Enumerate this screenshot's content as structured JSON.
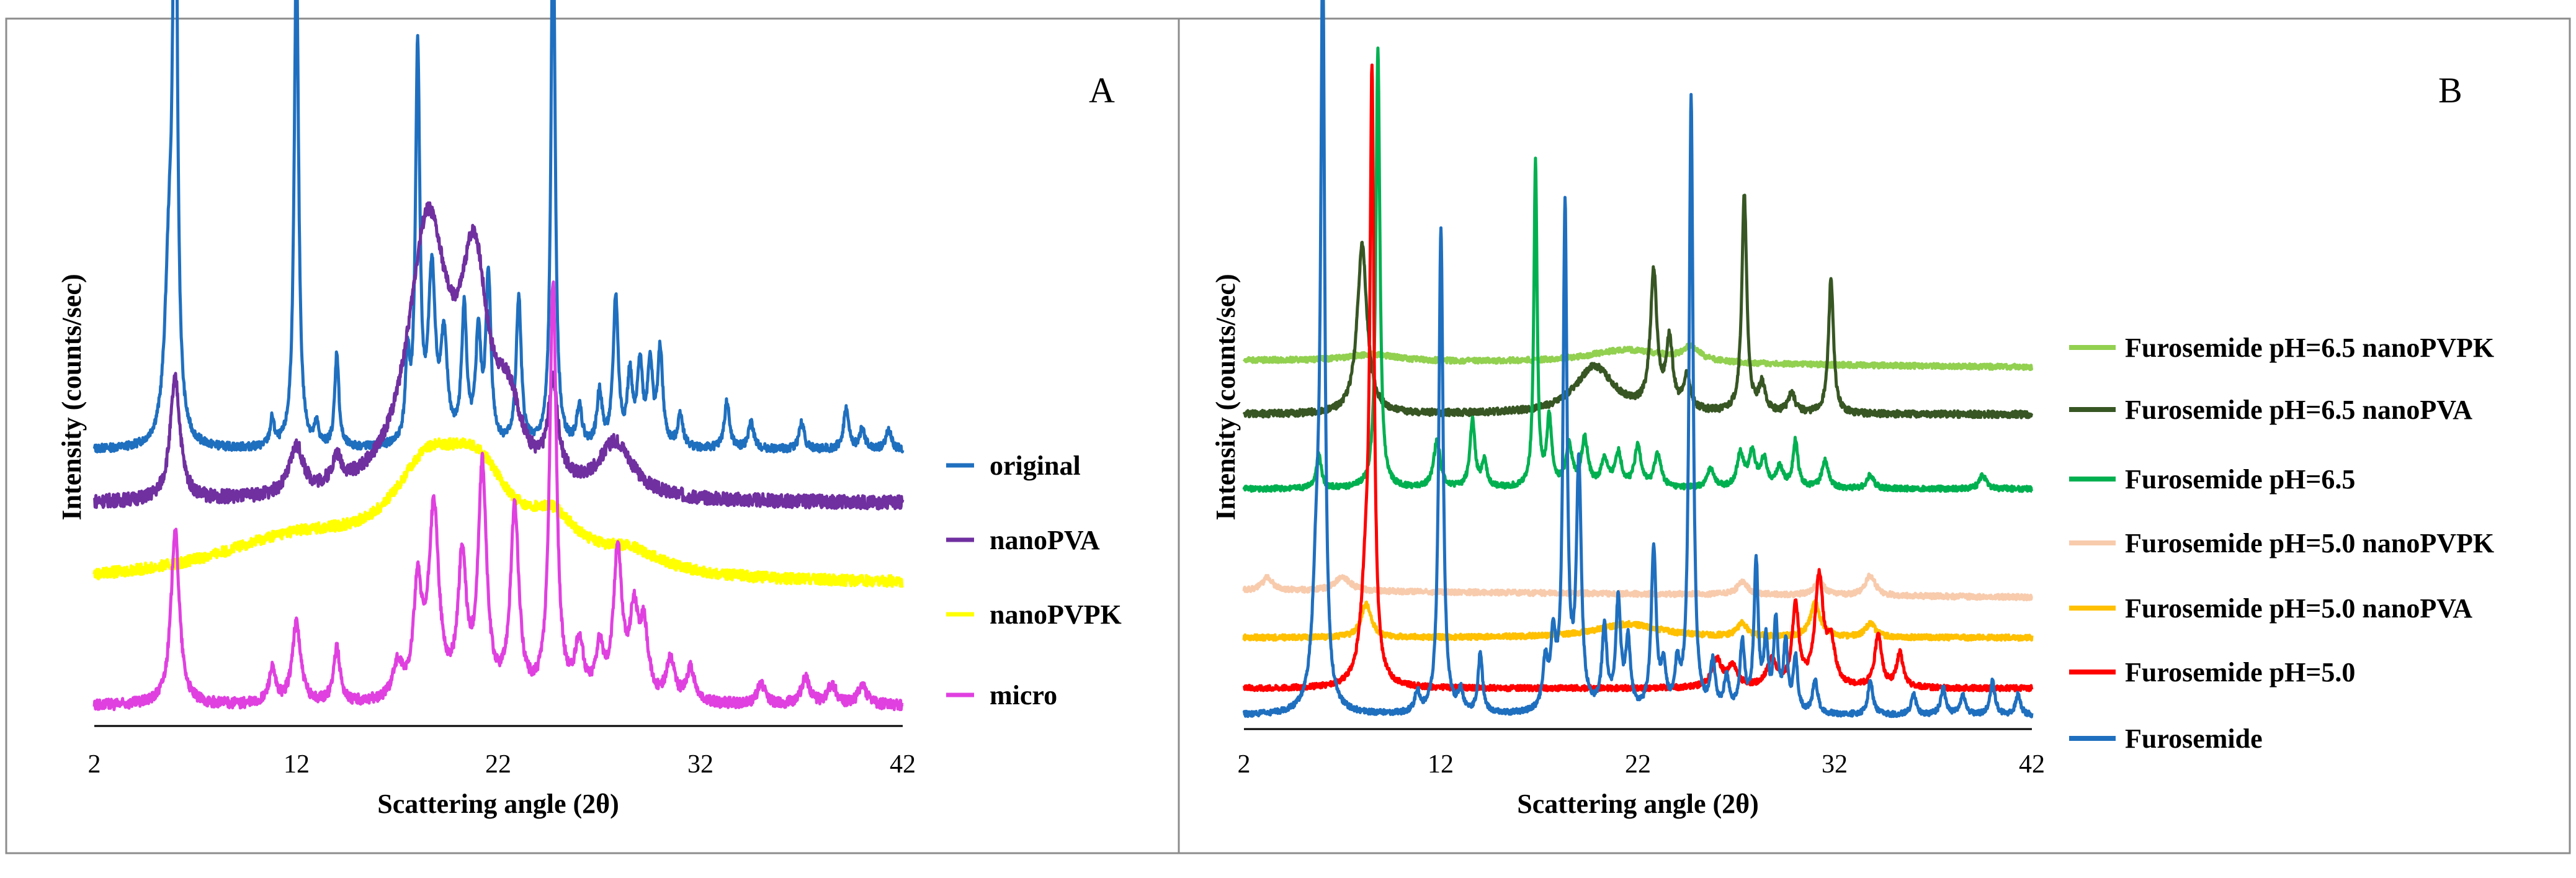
{
  "chart_data": [
    {
      "type": "line",
      "panel_label": "A",
      "xlabel": "Scattering angle (2θ)",
      "ylabel": "Intensity (counts/sec)",
      "xlim": [
        2,
        42
      ],
      "xticks": [
        2,
        12,
        22,
        32,
        42
      ],
      "yticks_shown": false,
      "grid": false,
      "legend_position": "right",
      "series": [
        {
          "name": "original",
          "color": "#1F6FBF",
          "baseline": 0.41,
          "noise": 0.006,
          "peaks": [
            [
              6.0,
              0.98,
              0.12
            ],
            [
              5.7,
              0.25,
              0.25
            ],
            [
              12.0,
              0.74,
              0.13
            ],
            [
              10.8,
              0.04,
              0.12
            ],
            [
              13.0,
              0.03,
              0.12
            ],
            [
              14.0,
              0.14,
              0.12
            ],
            [
              17.5,
              0.12,
              0.12
            ],
            [
              18.0,
              0.58,
              0.13
            ],
            [
              18.7,
              0.25,
              0.2
            ],
            [
              19.3,
              0.15,
              0.2
            ],
            [
              20.3,
              0.2,
              0.15
            ],
            [
              21.0,
              0.16,
              0.15
            ],
            [
              21.5,
              0.25,
              0.15
            ],
            [
              23.0,
              0.22,
              0.15
            ],
            [
              24.7,
              0.83,
              0.12
            ],
            [
              26.0,
              0.06,
              0.15
            ],
            [
              27.0,
              0.08,
              0.15
            ],
            [
              27.8,
              0.22,
              0.15
            ],
            [
              28.5,
              0.1,
              0.15
            ],
            [
              29.0,
              0.12,
              0.15
            ],
            [
              29.5,
              0.12,
              0.15
            ],
            [
              30.0,
              0.14,
              0.15
            ],
            [
              31.0,
              0.05,
              0.15
            ],
            [
              33.3,
              0.07,
              0.15
            ],
            [
              34.5,
              0.04,
              0.15
            ],
            [
              37.0,
              0.04,
              0.15
            ],
            [
              39.2,
              0.06,
              0.15
            ],
            [
              40.0,
              0.03,
              0.15
            ],
            [
              41.3,
              0.03,
              0.15
            ]
          ]
        },
        {
          "name": "nanoPVA",
          "color": "#7030A0",
          "baseline": 0.33,
          "noise": 0.01,
          "peaks": [
            [
              6.0,
              0.18,
              0.3
            ],
            [
              12.0,
              0.07,
              0.4
            ],
            [
              14.0,
              0.04,
              0.3
            ],
            [
              18.5,
              0.4,
              1.2
            ],
            [
              20.8,
              0.3,
              0.8
            ],
            [
              22.5,
              0.1,
              0.8
            ],
            [
              24.7,
              0.14,
              0.3
            ],
            [
              27.8,
              0.08,
              1.0
            ]
          ]
        },
        {
          "name": "nanoPVPK",
          "color": "#FFFF00",
          "baseline": 0.21,
          "noise": 0.008,
          "peaks": [
            [
              12.0,
              0.06,
              5.0
            ],
            [
              18.5,
              0.13,
              2.2
            ],
            [
              21.0,
              0.12,
              2.0
            ],
            [
              24.7,
              0.06,
              1.5
            ],
            [
              28.5,
              0.03,
              2.0
            ]
          ]
        },
        {
          "name": "micro",
          "color": "#E040E0",
          "baseline": 0.03,
          "noise": 0.008,
          "peaks": [
            [
              6.0,
              0.26,
              0.25
            ],
            [
              10.8,
              0.05,
              0.2
            ],
            [
              12.0,
              0.12,
              0.25
            ],
            [
              14.0,
              0.08,
              0.2
            ],
            [
              17.0,
              0.05,
              0.3
            ],
            [
              18.0,
              0.16,
              0.25
            ],
            [
              18.8,
              0.28,
              0.3
            ],
            [
              20.2,
              0.2,
              0.25
            ],
            [
              21.2,
              0.34,
              0.25
            ],
            [
              22.8,
              0.28,
              0.25
            ],
            [
              24.7,
              0.62,
              0.2
            ],
            [
              26.0,
              0.08,
              0.25
            ],
            [
              27.0,
              0.07,
              0.25
            ],
            [
              27.9,
              0.22,
              0.25
            ],
            [
              28.7,
              0.12,
              0.25
            ],
            [
              29.2,
              0.1,
              0.25
            ],
            [
              30.5,
              0.06,
              0.25
            ],
            [
              31.5,
              0.05,
              0.25
            ],
            [
              35.0,
              0.03,
              0.25
            ],
            [
              37.2,
              0.04,
              0.25
            ],
            [
              38.5,
              0.03,
              0.25
            ],
            [
              40.0,
              0.03,
              0.25
            ]
          ]
        }
      ]
    },
    {
      "type": "line",
      "panel_label": "B",
      "xlabel": "Scattering angle (2θ)",
      "ylabel": "Intensity (counts/sec)",
      "xlim": [
        2,
        42
      ],
      "xticks": [
        2,
        12,
        22,
        32,
        42
      ],
      "yticks_shown": false,
      "grid": false,
      "legend_position": "right",
      "series": [
        {
          "name": "Furosemide pH=6.5 nanoPVPK",
          "color": "#92D050",
          "baseline": 0.545,
          "noise": 0.004,
          "slope": -0.01,
          "peaks": [
            [
              8.5,
              0.01,
              1.5
            ],
            [
              21.5,
              0.02,
              2.5
            ],
            [
              24.7,
              0.02,
              0.5
            ]
          ]
        },
        {
          "name": "Furosemide pH=6.5 nanoPVA",
          "color": "#375623",
          "baseline": 0.465,
          "noise": 0.005,
          "peaks": [
            [
              8.0,
              0.25,
              0.3
            ],
            [
              19.8,
              0.07,
              1.2
            ],
            [
              22.8,
              0.2,
              0.2
            ],
            [
              23.6,
              0.1,
              0.2
            ],
            [
              24.5,
              0.05,
              0.2
            ],
            [
              27.4,
              0.32,
              0.15
            ],
            [
              28.3,
              0.04,
              0.2
            ],
            [
              29.8,
              0.03,
              0.2
            ],
            [
              31.8,
              0.2,
              0.15
            ]
          ]
        },
        {
          "name": "Furosemide pH=6.5",
          "color": "#00B050",
          "baseline": 0.355,
          "noise": 0.004,
          "peaks": [
            [
              5.8,
              0.05,
              0.15
            ],
            [
              8.8,
              0.65,
              0.12
            ],
            [
              11.8,
              0.07,
              0.2
            ],
            [
              13.6,
              0.1,
              0.15
            ],
            [
              14.2,
              0.04,
              0.15
            ],
            [
              16.8,
              0.48,
              0.1
            ],
            [
              17.5,
              0.1,
              0.15
            ],
            [
              18.5,
              0.06,
              0.2
            ],
            [
              19.3,
              0.07,
              0.2
            ],
            [
              20.3,
              0.04,
              0.2
            ],
            [
              21.0,
              0.05,
              0.2
            ],
            [
              22.0,
              0.06,
              0.2
            ],
            [
              23.0,
              0.05,
              0.2
            ],
            [
              25.7,
              0.03,
              0.2
            ],
            [
              27.2,
              0.05,
              0.2
            ],
            [
              27.8,
              0.05,
              0.2
            ],
            [
              28.4,
              0.04,
              0.2
            ],
            [
              29.2,
              0.03,
              0.2
            ],
            [
              30.0,
              0.07,
              0.15
            ],
            [
              31.5,
              0.04,
              0.2
            ],
            [
              33.8,
              0.02,
              0.2
            ],
            [
              39.5,
              0.02,
              0.2
            ]
          ]
        },
        {
          "name": "Furosemide pH=5.0 nanoPVPK",
          "color": "#F8CBAD",
          "baseline": 0.205,
          "noise": 0.004,
          "slope": -0.01,
          "peaks": [
            [
              3.2,
              0.02,
              0.3
            ],
            [
              7.0,
              0.02,
              0.5
            ],
            [
              27.3,
              0.02,
              0.3
            ],
            [
              31.2,
              0.02,
              0.3
            ],
            [
              33.8,
              0.03,
              0.3
            ]
          ]
        },
        {
          "name": "Furosemide pH=5.0 nanoPVA",
          "color": "#FFC000",
          "baseline": 0.135,
          "noise": 0.004,
          "peaks": [
            [
              8.2,
              0.05,
              0.3
            ],
            [
              21.5,
              0.02,
              2.0
            ],
            [
              27.3,
              0.02,
              0.3
            ],
            [
              31.0,
              0.05,
              0.3
            ],
            [
              33.8,
              0.02,
              0.3
            ]
          ]
        },
        {
          "name": "Furosemide pH=5.0",
          "color": "#FF0000",
          "baseline": 0.06,
          "noise": 0.004,
          "peaks": [
            [
              8.5,
              0.85,
              0.12
            ],
            [
              8.2,
              0.15,
              0.3
            ],
            [
              26.0,
              0.04,
              0.3
            ],
            [
              26.8,
              0.03,
              0.3
            ],
            [
              28.8,
              0.04,
              0.3
            ],
            [
              30.0,
              0.12,
              0.2
            ],
            [
              31.2,
              0.16,
              0.25
            ],
            [
              31.8,
              0.06,
              0.25
            ],
            [
              34.2,
              0.08,
              0.2
            ],
            [
              35.3,
              0.05,
              0.2
            ]
          ]
        },
        {
          "name": "Furosemide",
          "color": "#1F6FBF",
          "baseline": 0.02,
          "noise": 0.004,
          "peaks": [
            [
              6.0,
              1.06,
              0.12
            ],
            [
              5.7,
              0.2,
              0.25
            ],
            [
              10.8,
              0.03,
              0.15
            ],
            [
              12.0,
              0.72,
              0.13
            ],
            [
              13.0,
              0.03,
              0.15
            ],
            [
              14.0,
              0.09,
              0.13
            ],
            [
              17.3,
              0.07,
              0.15
            ],
            [
              17.7,
              0.1,
              0.15
            ],
            [
              18.3,
              0.74,
              0.12
            ],
            [
              19.0,
              0.36,
              0.15
            ],
            [
              20.3,
              0.12,
              0.15
            ],
            [
              21.0,
              0.16,
              0.15
            ],
            [
              21.5,
              0.1,
              0.15
            ],
            [
              22.8,
              0.24,
              0.15
            ],
            [
              23.3,
              0.06,
              0.15
            ],
            [
              24.0,
              0.06,
              0.15
            ],
            [
              24.7,
              0.91,
              0.12
            ],
            [
              25.8,
              0.07,
              0.15
            ],
            [
              26.5,
              0.05,
              0.15
            ],
            [
              27.3,
              0.1,
              0.15
            ],
            [
              28.0,
              0.22,
              0.13
            ],
            [
              28.5,
              0.1,
              0.13
            ],
            [
              29.0,
              0.13,
              0.13
            ],
            [
              29.5,
              0.1,
              0.13
            ],
            [
              30.0,
              0.08,
              0.13
            ],
            [
              31.0,
              0.05,
              0.15
            ],
            [
              33.8,
              0.05,
              0.15
            ],
            [
              36.0,
              0.03,
              0.15
            ],
            [
              37.5,
              0.04,
              0.15
            ],
            [
              38.5,
              0.03,
              0.15
            ],
            [
              40.0,
              0.05,
              0.15
            ],
            [
              41.3,
              0.03,
              0.15
            ]
          ]
        }
      ]
    }
  ]
}
